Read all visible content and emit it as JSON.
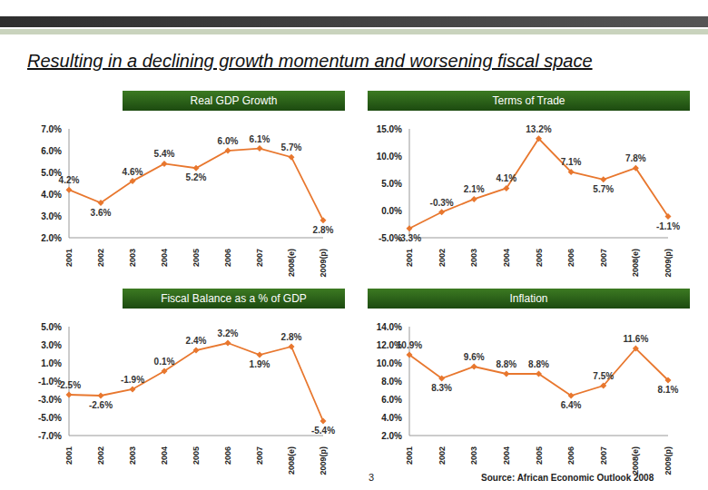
{
  "title": "Resulting in a declining growth momentum and worsening fiscal space",
  "footer": {
    "page": "3",
    "source": "Source: African Economic Outlook 2008"
  },
  "chart_data": [
    {
      "type": "line",
      "title": "Real GDP Growth",
      "categories": [
        "2001",
        "2002",
        "2003",
        "2004",
        "2005",
        "2006",
        "2007",
        "2008(e)",
        "2009(p)"
      ],
      "values": [
        4.2,
        3.6,
        4.6,
        5.4,
        5.2,
        6.0,
        6.1,
        5.7,
        2.8
      ],
      "value_labels": [
        "4.2%",
        "3.6%",
        "4.6%",
        "5.4%",
        "5.2%",
        "6.0%",
        "6.1%",
        "5.7%",
        "2.8%"
      ],
      "data_labels": true,
      "color": "#e8772e",
      "marker": "diamond",
      "grid": false,
      "ylim": [
        2,
        7
      ],
      "yticks": [
        {
          "value": 2,
          "label": "2.0%"
        },
        {
          "value": 3,
          "label": "3.0%"
        },
        {
          "value": 4,
          "label": "4.0%"
        },
        {
          "value": 5,
          "label": "5.0%"
        },
        {
          "value": 6,
          "label": "6.0%"
        },
        {
          "value": 7,
          "label": "7.0%"
        }
      ]
    },
    {
      "type": "line",
      "title": "Terms of Trade",
      "categories": [
        "2001",
        "2002",
        "2003",
        "2004",
        "2005",
        "2006",
        "2007",
        "2008(e)",
        "2009(p)"
      ],
      "values": [
        -3.3,
        -0.3,
        2.1,
        4.1,
        13.2,
        7.1,
        5.7,
        7.8,
        -1.1
      ],
      "value_labels": [
        "-3.3%",
        "-0.3%",
        "2.1%",
        "4.1%",
        "13.2%",
        "7.1%",
        "5.7%",
        "7.8%",
        "-1.1%"
      ],
      "data_labels": true,
      "color": "#e8772e",
      "marker": "diamond",
      "grid": false,
      "ylim": [
        -5,
        15
      ],
      "yticks": [
        {
          "value": -5,
          "label": "-5.0%"
        },
        {
          "value": 0,
          "label": "0.0%"
        },
        {
          "value": 5,
          "label": "5.0%"
        },
        {
          "value": 10,
          "label": "10.0%"
        },
        {
          "value": 15,
          "label": "15.0%"
        }
      ]
    },
    {
      "type": "line",
      "title": "Fiscal Balance as a % of GDP",
      "categories": [
        "2001",
        "2002",
        "2003",
        "2004",
        "2005",
        "2006",
        "2007",
        "2008(e)",
        "2009(p)"
      ],
      "values": [
        -2.5,
        -2.6,
        -1.9,
        0.1,
        2.4,
        3.2,
        1.9,
        2.8,
        -5.4
      ],
      "value_labels": [
        "-2.5%",
        "-2.6%",
        "-1.9%",
        "0.1%",
        "2.4%",
        "3.2%",
        "1.9%",
        "2.8%",
        "-5.4%"
      ],
      "data_labels": true,
      "color": "#e8772e",
      "marker": "diamond",
      "grid": false,
      "ylim": [
        -7,
        5
      ],
      "yticks": [
        {
          "value": -7,
          "label": "-7.0%"
        },
        {
          "value": -5,
          "label": "-5.0%"
        },
        {
          "value": -3,
          "label": "-3.0%"
        },
        {
          "value": -1,
          "label": "-1.0%"
        },
        {
          "value": 1,
          "label": "1.0%"
        },
        {
          "value": 3,
          "label": "3.0%"
        },
        {
          "value": 5,
          "label": "5.0%"
        }
      ]
    },
    {
      "type": "line",
      "title": "Inflation",
      "categories": [
        "2001",
        "2002",
        "2003",
        "2004",
        "2005",
        "2006",
        "2007",
        "2008(e)",
        "2009(p)"
      ],
      "values": [
        10.9,
        8.3,
        9.6,
        8.8,
        8.8,
        6.4,
        7.5,
        11.6,
        8.1
      ],
      "value_labels": [
        "10.9%",
        "8.3%",
        "9.6%",
        "8.8%",
        "8.8%",
        "6.4%",
        "7.5%",
        "11.6%",
        "8.1%"
      ],
      "data_labels": true,
      "color": "#e8772e",
      "marker": "diamond",
      "grid": false,
      "ylim": [
        2,
        14
      ],
      "yticks": [
        {
          "value": 2,
          "label": "2.0%"
        },
        {
          "value": 4,
          "label": "4.0%"
        },
        {
          "value": 6,
          "label": "6.0%"
        },
        {
          "value": 8,
          "label": "8.0%"
        },
        {
          "value": 10,
          "label": "10.0%"
        },
        {
          "value": 12,
          "label": "12.0%"
        },
        {
          "value": 14,
          "label": "14.0%"
        }
      ]
    }
  ]
}
